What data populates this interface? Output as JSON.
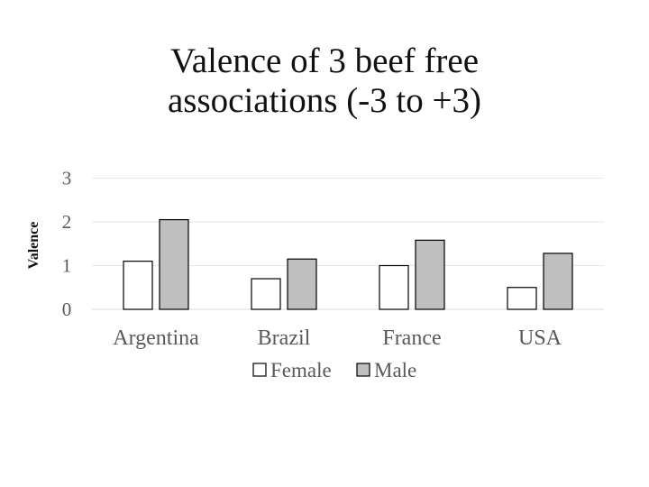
{
  "chart_data": {
    "type": "bar",
    "title_lines": [
      "Valence of 3 beef free",
      "associations (-3 to +3)"
    ],
    "ylabel": "Valence",
    "xlabel": "",
    "ylim": [
      0,
      3
    ],
    "yticks": [
      "0",
      "1",
      "2",
      "3"
    ],
    "grid": true,
    "legend_position": "bottom",
    "categories": [
      "Argentina",
      "Brazil",
      "France",
      "USA"
    ],
    "series": [
      {
        "name": "Female",
        "values": [
          1.1,
          0.7,
          1.0,
          0.5
        ],
        "color": "#ffffff"
      },
      {
        "name": "Male",
        "values": [
          2.05,
          1.15,
          1.58,
          1.28
        ],
        "color": "#bfbfbf"
      }
    ]
  }
}
